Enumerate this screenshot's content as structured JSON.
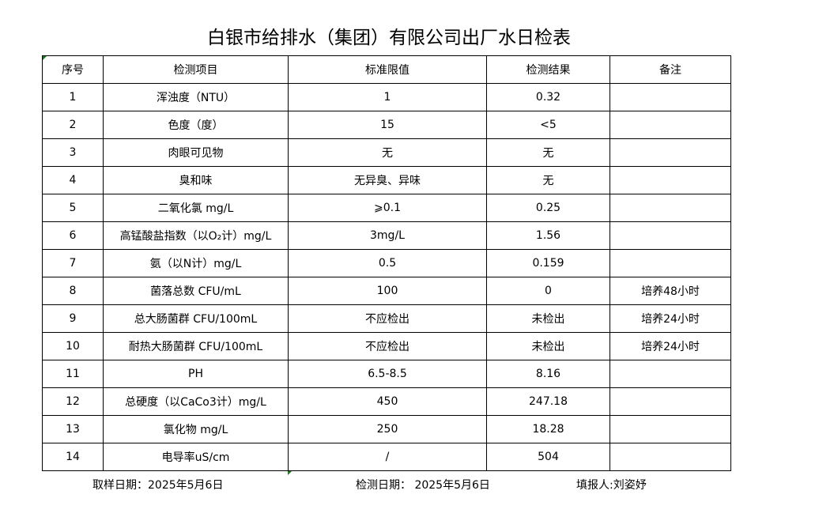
{
  "title": "白银市给排水（集团）有限公司出厂水日检表",
  "headers": [
    "序号",
    "检测项目",
    "标准限值",
    "检测结果",
    "备注"
  ],
  "rows": [
    [
      "1",
      "浑浊度（NTU）",
      "1",
      "0.32",
      ""
    ],
    [
      "2",
      "色度（度）",
      "15",
      "<5",
      ""
    ],
    [
      "3",
      "肉眼可见物",
      "无",
      "无",
      ""
    ],
    [
      "4",
      "臭和味",
      "无异臭、异味",
      "无",
      ""
    ],
    [
      "5",
      "二氧化氯 mg/L",
      "⩾0.1",
      "0.25",
      ""
    ],
    [
      "6",
      "高锰酸盐指数（以O₂计）mg/L",
      "3mg/L",
      "1.56",
      ""
    ],
    [
      "7",
      "氨（以N计）mg/L",
      "0.5",
      "0.159",
      ""
    ],
    [
      "8",
      "菌落总数 CFU/mL",
      "100",
      "0",
      "培养48小时"
    ],
    [
      "9",
      "总大肠菌群 CFU/100mL",
      "不应检出",
      "未检出",
      "培养24小时"
    ],
    [
      "10",
      "耐热大肠菌群 CFU/100mL",
      "不应检出",
      "未检出",
      "培养24小时"
    ],
    [
      "11",
      "PH",
      "6.5-8.5",
      "8.16",
      ""
    ],
    [
      "12",
      "总硬度（以CaCo3计）mg/L",
      "450",
      "247.18",
      ""
    ],
    [
      "13",
      "氯化物 mg/L",
      "250",
      "18.28",
      ""
    ],
    [
      "14",
      "电导率uS/cm",
      "/",
      "504",
      ""
    ]
  ],
  "footer": {
    "sample_date": "取样日期：2025年5月6日",
    "test_date": "检测日期：  2025年5月6日",
    "reporter": "填报人:刘姿妤"
  }
}
